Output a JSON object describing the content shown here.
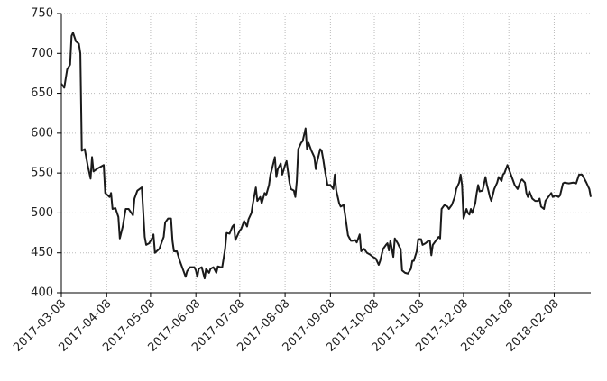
{
  "chart_data": {
    "type": "line",
    "color": "#1a1a1a",
    "grid": true,
    "x": [
      "2017-03-08",
      "2017-03-10",
      "2017-03-12",
      "2017-03-14",
      "2017-03-15",
      "2017-03-16",
      "2017-03-18",
      "2017-03-20",
      "2017-03-21",
      "2017-03-22",
      "2017-03-24",
      "2017-03-26",
      "2017-03-28",
      "2017-03-29",
      "2017-03-30",
      "2017-04-02",
      "2017-04-06",
      "2017-04-07",
      "2017-04-10",
      "2017-04-11",
      "2017-04-12",
      "2017-04-14",
      "2017-04-16",
      "2017-04-17",
      "2017-04-19",
      "2017-04-21",
      "2017-04-23",
      "2017-04-26",
      "2017-04-27",
      "2017-04-29",
      "2017-05-02",
      "2017-05-04",
      "2017-05-05",
      "2017-05-07",
      "2017-05-09",
      "2017-05-10",
      "2017-05-11",
      "2017-05-14",
      "2017-05-16",
      "2017-05-17",
      "2017-05-18",
      "2017-05-20",
      "2017-05-22",
      "2017-05-23",
      "2017-05-24",
      "2017-05-26",
      "2017-05-28",
      "2017-05-30",
      "2017-06-01",
      "2017-06-02",
      "2017-06-04",
      "2017-06-07",
      "2017-06-08",
      "2017-06-09",
      "2017-06-10",
      "2017-06-12",
      "2017-06-14",
      "2017-06-15",
      "2017-06-17",
      "2017-06-18",
      "2017-06-20",
      "2017-06-22",
      "2017-06-23",
      "2017-06-25",
      "2017-06-26",
      "2017-06-28",
      "2017-06-29",
      "2017-07-01",
      "2017-07-03",
      "2017-07-04",
      "2017-07-05",
      "2017-07-06",
      "2017-07-08",
      "2017-07-09",
      "2017-07-11",
      "2017-07-13",
      "2017-07-14",
      "2017-07-16",
      "2017-07-17",
      "2017-07-19",
      "2017-07-20",
      "2017-07-22",
      "2017-07-23",
      "2017-07-25",
      "2017-07-26",
      "2017-07-28",
      "2017-07-29",
      "2017-07-30",
      "2017-08-01",
      "2017-08-02",
      "2017-08-03",
      "2017-08-05",
      "2017-08-06",
      "2017-08-08",
      "2017-08-09",
      "2017-08-11",
      "2017-08-12",
      "2017-08-14",
      "2017-08-15",
      "2017-08-16",
      "2017-08-17",
      "2017-08-19",
      "2017-08-20",
      "2017-08-22",
      "2017-08-23",
      "2017-08-24",
      "2017-08-26",
      "2017-08-28",
      "2017-08-29",
      "2017-08-30",
      "2017-09-01",
      "2017-09-02",
      "2017-09-03",
      "2017-09-04",
      "2017-09-06",
      "2017-09-08",
      "2017-09-10",
      "2017-09-11",
      "2017-09-12",
      "2017-09-14",
      "2017-09-15",
      "2017-09-17",
      "2017-09-18",
      "2017-09-20",
      "2017-09-22",
      "2017-09-23",
      "2017-09-25",
      "2017-09-26",
      "2017-09-28",
      "2017-09-29",
      "2017-10-01",
      "2017-10-03",
      "2017-10-05",
      "2017-10-07",
      "2017-10-09",
      "2017-10-11",
      "2017-10-12",
      "2017-10-14",
      "2017-10-16",
      "2017-10-17",
      "2017-10-18",
      "2017-10-19",
      "2017-10-21",
      "2017-10-22",
      "2017-10-24",
      "2017-10-25",
      "2017-10-26",
      "2017-10-27",
      "2017-10-29",
      "2017-10-31",
      "2017-11-02",
      "2017-11-03",
      "2017-11-04",
      "2017-11-06",
      "2017-11-07",
      "2017-11-09",
      "2017-11-10",
      "2017-11-12",
      "2017-11-14",
      "2017-11-15",
      "2017-11-16",
      "2017-11-17",
      "2017-11-19",
      "2017-11-21",
      "2017-11-22",
      "2017-11-23",
      "2017-11-25",
      "2017-11-27",
      "2017-11-28",
      "2017-11-30",
      "2017-12-02",
      "2017-12-03",
      "2017-12-05",
      "2017-12-06",
      "2017-12-07",
      "2017-12-08",
      "2017-12-10",
      "2017-12-11",
      "2017-12-12",
      "2017-12-13",
      "2017-12-14",
      "2017-12-16",
      "2017-12-17",
      "2017-12-18",
      "2017-12-19",
      "2017-12-21",
      "2017-12-23",
      "2017-12-24",
      "2017-12-25",
      "2017-12-26",
      "2017-12-27",
      "2017-12-29",
      "2017-12-31",
      "2018-01-01",
      "2018-01-03",
      "2018-01-04",
      "2018-01-05",
      "2018-01-07",
      "2018-01-08",
      "2018-01-09",
      "2018-01-11",
      "2018-01-12",
      "2018-01-14",
      "2018-01-16",
      "2018-01-17",
      "2018-01-19",
      "2018-01-20",
      "2018-01-21",
      "2018-01-22",
      "2018-01-24",
      "2018-01-26",
      "2018-01-28",
      "2018-01-29",
      "2018-01-30",
      "2018-02-01",
      "2018-02-02",
      "2018-02-04",
      "2018-02-06",
      "2018-02-07",
      "2018-02-09",
      "2018-02-11",
      "2018-02-12",
      "2018-02-14",
      "2018-02-15",
      "2018-02-18",
      "2018-02-21",
      "2018-02-23",
      "2018-02-25",
      "2018-02-27",
      "2018-02-28",
      "2018-03-02",
      "2018-03-04",
      "2018-03-05"
    ],
    "values": [
      662,
      657,
      680,
      686,
      722,
      726,
      715,
      712,
      700,
      578,
      580,
      560,
      543,
      570,
      552,
      556,
      560,
      525,
      520,
      525,
      505,
      506,
      495,
      468,
      483,
      505,
      505,
      497,
      518,
      528,
      532,
      470,
      460,
      462,
      468,
      473,
      450,
      455,
      465,
      470,
      488,
      493,
      493,
      465,
      452,
      452,
      440,
      430,
      420,
      427,
      432,
      432,
      428,
      420,
      430,
      432,
      418,
      430,
      425,
      430,
      432,
      425,
      433,
      432,
      432,
      455,
      475,
      474,
      483,
      485,
      466,
      470,
      478,
      480,
      490,
      483,
      492,
      500,
      512,
      532,
      515,
      520,
      512,
      525,
      522,
      535,
      548,
      555,
      570,
      545,
      555,
      562,
      548,
      560,
      565,
      538,
      530,
      528,
      520,
      540,
      580,
      588,
      590,
      606,
      580,
      588,
      578,
      570,
      555,
      565,
      580,
      578,
      568,
      556,
      535,
      535,
      530,
      548,
      528,
      512,
      508,
      510,
      498,
      472,
      465,
      465,
      466,
      463,
      473,
      452,
      455,
      450,
      448,
      445,
      443,
      435,
      440,
      455,
      460,
      462,
      453,
      465,
      445,
      468,
      462,
      458,
      455,
      428,
      425,
      424,
      430,
      440,
      440,
      452,
      467,
      467,
      460,
      462,
      465,
      465,
      447,
      460,
      465,
      470,
      468,
      505,
      510,
      508,
      505,
      510,
      520,
      530,
      538,
      548,
      535,
      493,
      505,
      500,
      498,
      505,
      500,
      512,
      525,
      535,
      527,
      528,
      545,
      535,
      528,
      520,
      515,
      530,
      538,
      545,
      540,
      548,
      550,
      560,
      555,
      550,
      540,
      535,
      530,
      540,
      542,
      538,
      525,
      520,
      527,
      518,
      515,
      515,
      518,
      508,
      505,
      515,
      520,
      525,
      520,
      522,
      520,
      522,
      537,
      538,
      537,
      538,
      537,
      548,
      548,
      545,
      538,
      530,
      520
    ],
    "xlim": [
      "2017-03-08",
      "2018-03-05"
    ],
    "xticks": [
      "2017-03-08",
      "2017-04-08",
      "2017-05-08",
      "2017-06-08",
      "2017-07-08",
      "2017-08-08",
      "2017-09-08",
      "2017-10-08",
      "2017-11-08",
      "2017-12-08",
      "2018-01-08",
      "2018-02-08"
    ],
    "ylim": [
      400,
      750
    ],
    "yticks": [
      400,
      450,
      500,
      550,
      600,
      650,
      700,
      750
    ]
  }
}
